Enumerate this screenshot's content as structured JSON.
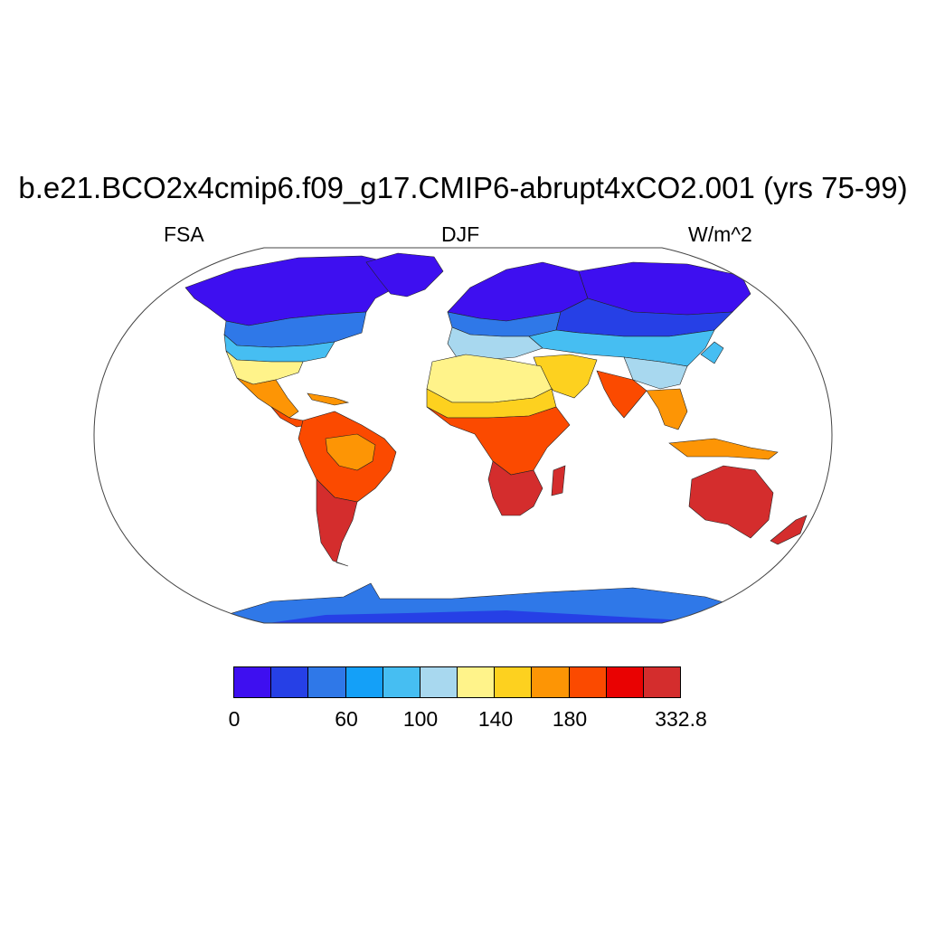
{
  "title": "b.e21.BCO2x4cmip6.f09_g17.CMIP6-abrupt4xCO2.001 (yrs 75-99)",
  "left_label": "FSA",
  "center_label": "DJF",
  "right_label": "W/m^2",
  "colorbar": {
    "colors": [
      "#3e0ff0",
      "#2640e6",
      "#2f78e8",
      "#14a0f8",
      "#46bef2",
      "#a8d8ef",
      "#fff38a",
      "#fdd11f",
      "#fd9505",
      "#fb4a00",
      "#e90202",
      "#d42d2d"
    ],
    "tick_labels": [
      "0",
      "60",
      "100",
      "140",
      "180",
      "332.8"
    ]
  }
}
